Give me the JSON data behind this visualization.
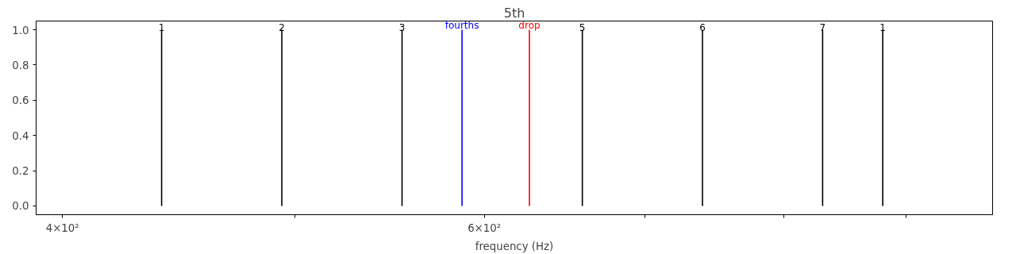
{
  "chart_data": {
    "type": "line",
    "title": "5th",
    "xlabel": "frequency (Hz)",
    "log": "x",
    "xlim": [
      390,
      978
    ],
    "xticks": [
      {
        "value": 400,
        "label": "4×10²"
      },
      {
        "value": 500,
        "label": null
      },
      {
        "value": 600,
        "label": "6×10²"
      },
      {
        "value": 700,
        "label": null
      },
      {
        "value": 800,
        "label": null
      },
      {
        "value": 900,
        "label": null
      }
    ],
    "ylim": [
      -0.05,
      1.05
    ],
    "yticks": [
      {
        "value": 0,
        "label": "0.0"
      },
      0.2,
      0.4,
      0.6,
      0.8,
      {
        "value": 1,
        "label": "1.0"
      }
    ],
    "grid": false,
    "legend": false,
    "series": [
      {
        "name": "1",
        "color": "#000000",
        "x": [
          440,
          440
        ],
        "values": [
          0,
          1
        ]
      },
      {
        "name": "2",
        "color": "#000000",
        "x": [
          493.9,
          493.9
        ],
        "values": [
          0,
          1
        ]
      },
      {
        "name": "3",
        "color": "#000000",
        "x": [
          554.4,
          554.4
        ],
        "values": [
          0,
          1
        ]
      },
      {
        "name": "fourths",
        "color": "#0000ff",
        "x": [
          587.3,
          587.3
        ],
        "values": [
          0,
          1
        ]
      },
      {
        "name": "drop",
        "color": "#ff0000",
        "x": [
          626.6,
          626.6
        ],
        "values": [
          0,
          1
        ]
      },
      {
        "name": "5",
        "color": "#000000",
        "x": [
          659.3,
          659.3
        ],
        "values": [
          0,
          1
        ]
      },
      {
        "name": "6",
        "color": "#000000",
        "x": [
          740,
          740
        ],
        "values": [
          0,
          1
        ]
      },
      {
        "name": "7",
        "color": "#000000",
        "x": [
          830.6,
          830.6
        ],
        "values": [
          0,
          1
        ]
      },
      {
        "name": "1",
        "color": "#000000",
        "x": [
          880,
          880
        ],
        "values": [
          0,
          1
        ]
      }
    ]
  }
}
